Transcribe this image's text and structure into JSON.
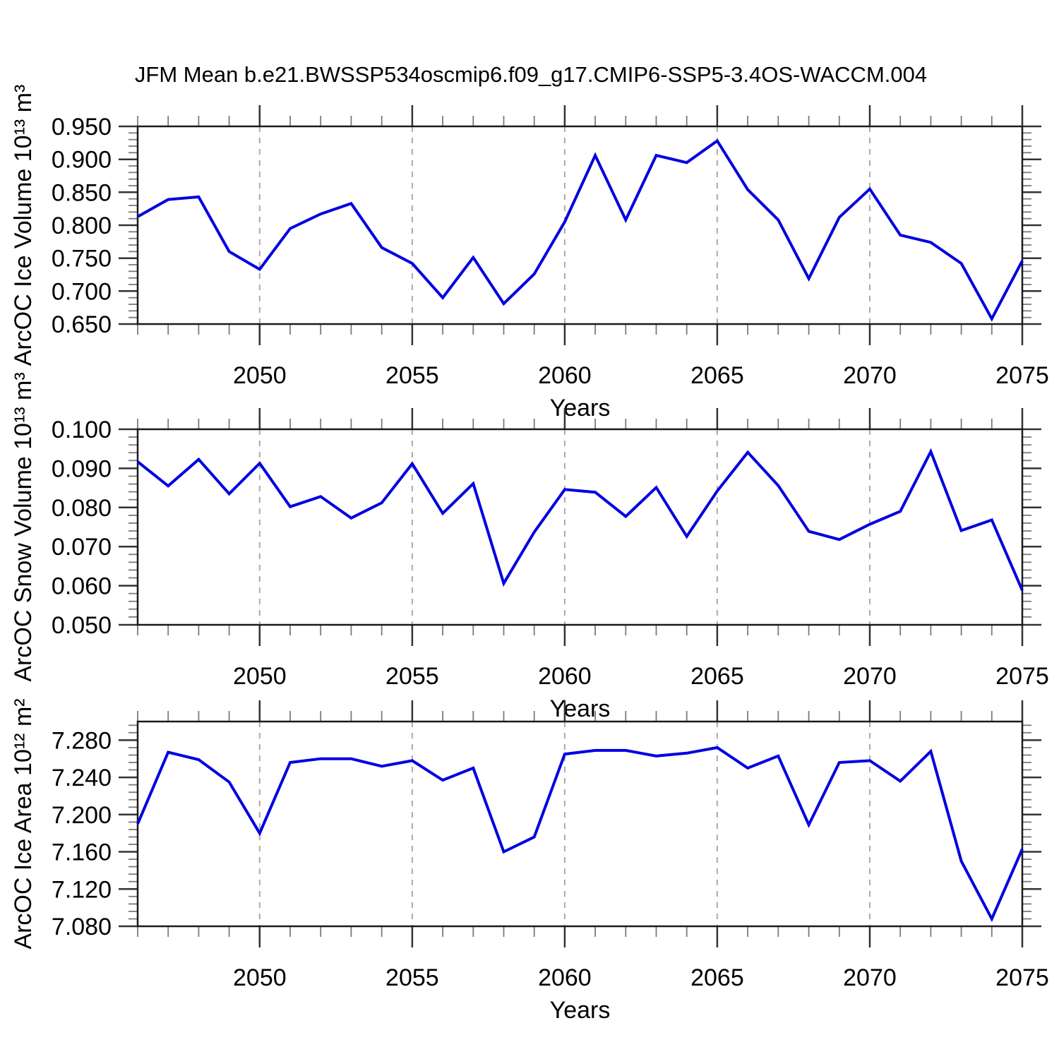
{
  "title": "JFM Mean b.e21.BWSSP534oscmip6.f09_g17.CMIP6-SSP5-3.4OS-WACCM.004",
  "colors": {
    "line": "#0000e0",
    "grid": "#ababab",
    "frame": "#1a1a1a",
    "tick_major": "#333333",
    "tick_minor": "#7a7a7a",
    "text": "#000000"
  },
  "x_axis": {
    "label": "Years",
    "min": 2046,
    "max": 2075,
    "major_ticks": [
      2050,
      2055,
      2060,
      2065,
      2070,
      2075
    ],
    "grid_years": [
      2050,
      2055,
      2060,
      2065,
      2070
    ],
    "minor_step": 1
  },
  "years": [
    2046,
    2047,
    2048,
    2049,
    2050,
    2051,
    2052,
    2053,
    2054,
    2055,
    2056,
    2057,
    2058,
    2059,
    2060,
    2061,
    2062,
    2063,
    2064,
    2065,
    2066,
    2067,
    2068,
    2069,
    2070,
    2071,
    2072,
    2073,
    2074,
    2075
  ],
  "chart_data": [
    {
      "id": "ice-volume",
      "type": "line",
      "ylabel": "ArcOC Ice Volume 10¹³ m³",
      "ymin": 0.65,
      "ymax": 0.95,
      "y_major_ticks": [
        0.65,
        0.7,
        0.75,
        0.8,
        0.85,
        0.9,
        0.95
      ],
      "y_tick_labels": [
        "0.650",
        "0.700",
        "0.750",
        "0.800",
        "0.850",
        "0.900",
        "0.950"
      ],
      "y_minor_step": 0.01,
      "values": [
        0.813,
        0.839,
        0.843,
        0.76,
        0.733,
        0.795,
        0.817,
        0.833,
        0.766,
        0.742,
        0.69,
        0.751,
        0.681,
        0.726,
        0.805,
        0.906,
        0.808,
        0.906,
        0.895,
        0.928,
        0.854,
        0.808,
        0.719,
        0.812,
        0.855,
        0.785,
        0.774,
        0.742,
        0.658,
        0.746
      ]
    },
    {
      "id": "snow-volume",
      "type": "line",
      "ylabel": "ArcOC Snow Volume 10¹³ m³",
      "ymin": 0.05,
      "ymax": 0.1,
      "y_major_ticks": [
        0.05,
        0.06,
        0.07,
        0.08,
        0.09,
        0.1
      ],
      "y_tick_labels": [
        "0.050",
        "0.060",
        "0.070",
        "0.080",
        "0.090",
        "0.100"
      ],
      "y_minor_step": 0.002,
      "values": [
        0.0917,
        0.0855,
        0.0923,
        0.0835,
        0.0913,
        0.0802,
        0.0828,
        0.0773,
        0.0812,
        0.0912,
        0.0785,
        0.0861,
        0.0606,
        0.0737,
        0.0846,
        0.0839,
        0.0777,
        0.0851,
        0.0726,
        0.0842,
        0.0941,
        0.0856,
        0.0739,
        0.0718,
        0.0757,
        0.079,
        0.0943,
        0.0741,
        0.0768,
        0.0588
      ]
    },
    {
      "id": "ice-area",
      "type": "line",
      "ylabel": "ArcOC Ice Area 10¹² m²",
      "ymin": 7.08,
      "ymax": 7.3,
      "y_major_ticks": [
        7.08,
        7.12,
        7.16,
        7.2,
        7.24,
        7.28
      ],
      "y_tick_labels": [
        "7.080",
        "7.120",
        "7.160",
        "7.200",
        "7.240",
        "7.280"
      ],
      "y_minor_step": 0.008,
      "values": [
        7.19,
        7.267,
        7.259,
        7.235,
        7.18,
        7.256,
        7.26,
        7.26,
        7.252,
        7.258,
        7.237,
        7.25,
        7.16,
        7.176,
        7.265,
        7.269,
        7.269,
        7.263,
        7.266,
        7.272,
        7.25,
        7.263,
        7.189,
        7.256,
        7.258,
        7.236,
        7.268,
        7.15,
        7.088,
        7.163
      ]
    }
  ]
}
